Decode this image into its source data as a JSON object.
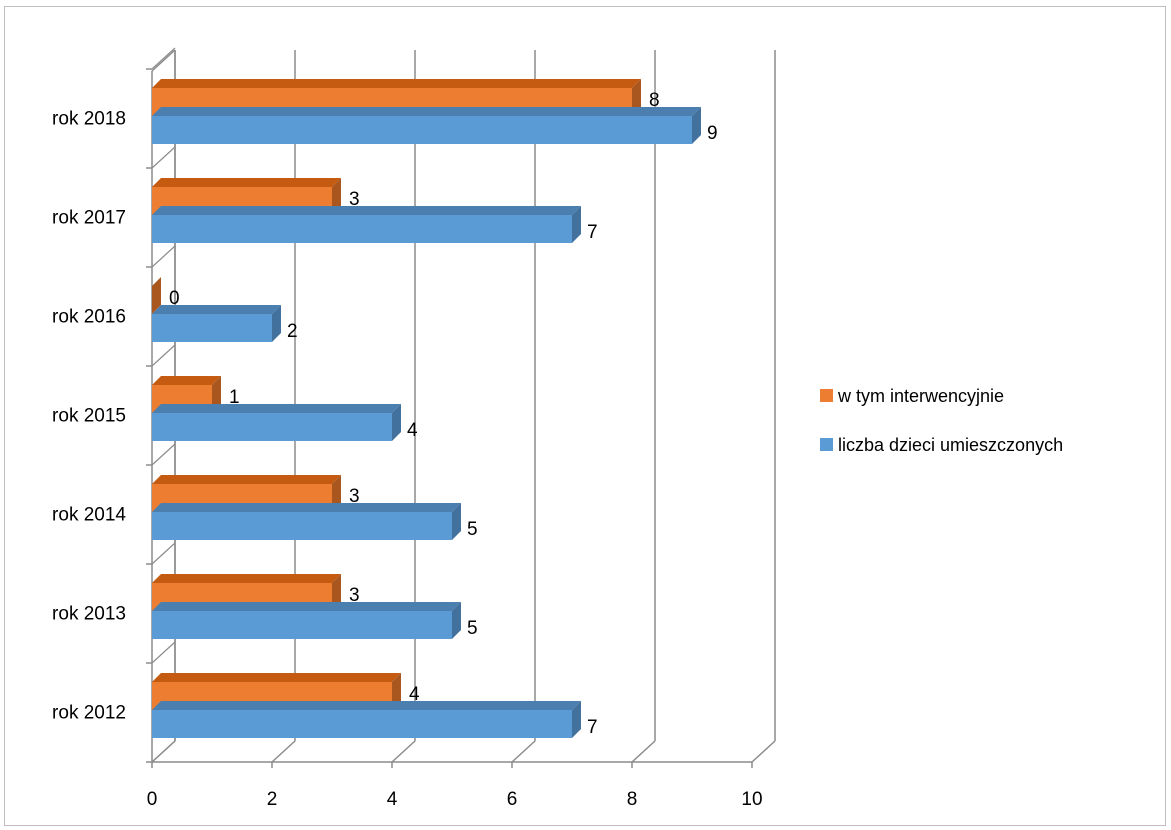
{
  "chart_data": {
    "type": "bar",
    "orientation": "horizontal",
    "style": "3d-clustered",
    "categories": [
      "rok 2012",
      "rok 2013",
      "rok 2014",
      "rok 2015",
      "rok 2016",
      "rok 2017",
      "rok 2018"
    ],
    "series": [
      {
        "name": "liczba dzieci umieszczonych",
        "values": [
          7,
          5,
          5,
          4,
          2,
          7,
          9
        ],
        "color": "#5b9bd5",
        "side_color": "#41719c",
        "top_color": "#4a7fb0"
      },
      {
        "name": "w tym interwencyjnie",
        "values": [
          4,
          3,
          3,
          1,
          0,
          3,
          8
        ],
        "color": "#ed7d31",
        "side_color": "#a9561f",
        "top_color": "#c55a11"
      }
    ],
    "xlim": [
      0,
      10
    ],
    "xticks": [
      "0",
      "2",
      "4",
      "6",
      "8",
      "10"
    ],
    "grid": true,
    "legend_position": "right",
    "legend_order": [
      "w tym interwencyjnie",
      "liczba dzieci umieszczonych"
    ],
    "data_labels": true
  }
}
